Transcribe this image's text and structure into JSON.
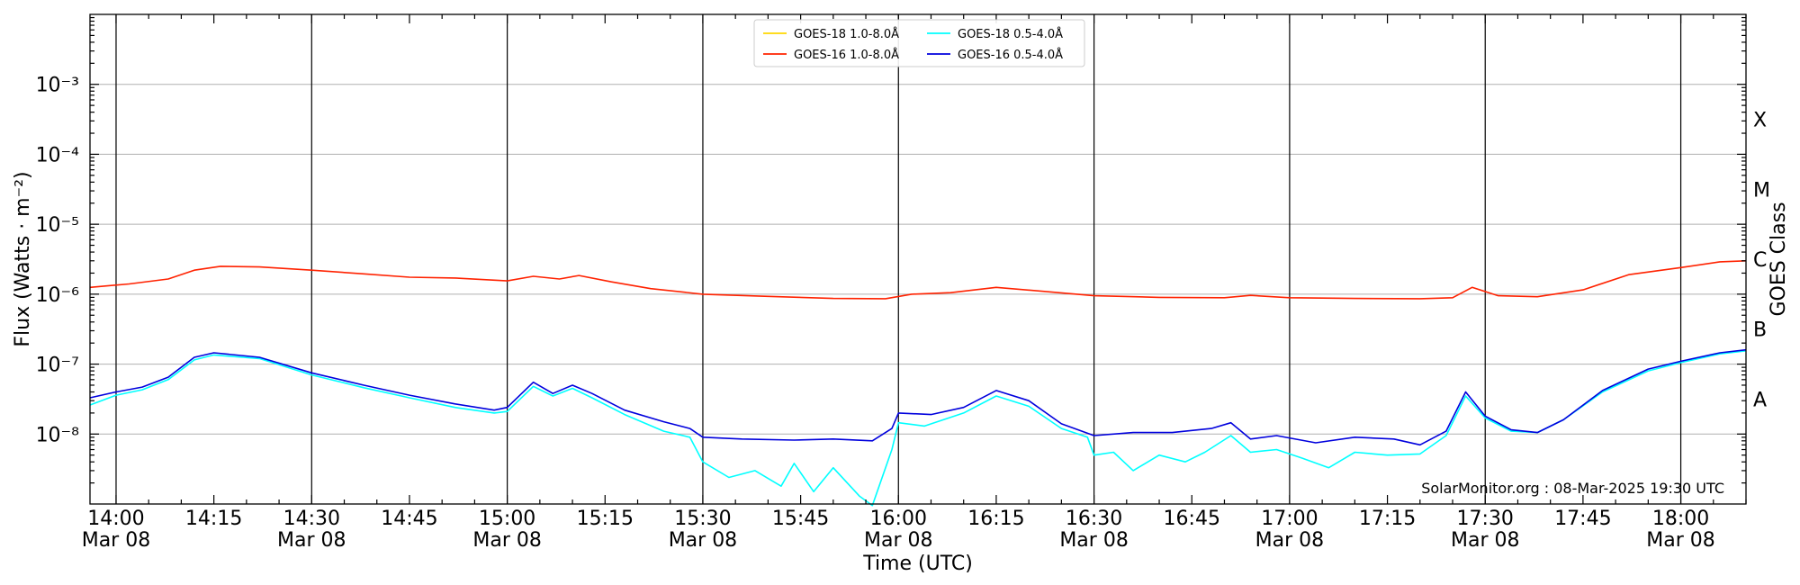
{
  "chart_data": {
    "type": "line",
    "title": "",
    "xlabel": "Time (UTC)",
    "ylabel": "Flux (Watts · m⁻²)",
    "y2label": "GOES Class",
    "yscale": "log",
    "xlim": [
      "13:56",
      "18:10"
    ],
    "ylim": [
      1e-09,
      0.01
    ],
    "grid": "horizontal",
    "legend": "top-center",
    "credit": "SolarMonitor.org : 08-Mar-2025 19:30 UTC",
    "x_ticks": [
      {
        "time": "14:00",
        "date": "Mar 08"
      },
      {
        "time": "14:15",
        "date": ""
      },
      {
        "time": "14:30",
        "date": "Mar 08"
      },
      {
        "time": "14:45",
        "date": ""
      },
      {
        "time": "15:00",
        "date": "Mar 08"
      },
      {
        "time": "15:15",
        "date": ""
      },
      {
        "time": "15:30",
        "date": "Mar 08"
      },
      {
        "time": "15:45",
        "date": ""
      },
      {
        "time": "16:00",
        "date": "Mar 08"
      },
      {
        "time": "16:15",
        "date": ""
      },
      {
        "time": "16:30",
        "date": "Mar 08"
      },
      {
        "time": "16:45",
        "date": ""
      },
      {
        "time": "17:00",
        "date": "Mar 08"
      },
      {
        "time": "17:15",
        "date": ""
      },
      {
        "time": "17:30",
        "date": "Mar 08"
      },
      {
        "time": "17:45",
        "date": ""
      },
      {
        "time": "18:00",
        "date": "Mar 08"
      }
    ],
    "y_ticks": [
      {
        "value": 1e-08,
        "label": "10⁻⁸"
      },
      {
        "value": 1e-07,
        "label": "10⁻⁷"
      },
      {
        "value": 1e-06,
        "label": "10⁻⁶"
      },
      {
        "value": 1e-05,
        "label": "10⁻⁵"
      },
      {
        "value": 0.0001,
        "label": "10⁻⁴"
      },
      {
        "value": 0.001,
        "label": "10⁻³"
      }
    ],
    "goes_classes": [
      {
        "label": "A",
        "value": 3.16e-08
      },
      {
        "label": "B",
        "value": 3.16e-07
      },
      {
        "label": "C",
        "value": 3.16e-06
      },
      {
        "label": "M",
        "value": 3.16e-05
      },
      {
        "label": "X",
        "value": 0.000316
      }
    ],
    "vertical_lines": [
      "14:00",
      "14:30",
      "15:00",
      "15:30",
      "16:00",
      "16:30",
      "17:00",
      "17:30",
      "18:00"
    ],
    "series": [
      {
        "name": "GOES-18 1.0-8.0Å",
        "color": "#ffd700",
        "points": []
      },
      {
        "name": "GOES-16 1.0-8.0Å",
        "color": "#ff2200",
        "points": [
          [
            "13:56",
            1.25e-06
          ],
          [
            "14:02",
            1.4e-06
          ],
          [
            "14:08",
            1.65e-06
          ],
          [
            "14:12",
            2.2e-06
          ],
          [
            "14:16",
            2.5e-06
          ],
          [
            "14:22",
            2.45e-06
          ],
          [
            "14:30",
            2.2e-06
          ],
          [
            "14:38",
            1.95e-06
          ],
          [
            "14:45",
            1.75e-06
          ],
          [
            "14:52",
            1.7e-06
          ],
          [
            "15:00",
            1.55e-06
          ],
          [
            "15:04",
            1.8e-06
          ],
          [
            "15:08",
            1.65e-06
          ],
          [
            "15:11",
            1.85e-06
          ],
          [
            "15:16",
            1.5e-06
          ],
          [
            "15:22",
            1.2e-06
          ],
          [
            "15:30",
            1e-06
          ],
          [
            "15:40",
            9.3e-07
          ],
          [
            "15:50",
            8.7e-07
          ],
          [
            "15:58",
            8.6e-07
          ],
          [
            "16:02",
            1e-06
          ],
          [
            "16:08",
            1.05e-06
          ],
          [
            "16:15",
            1.25e-06
          ],
          [
            "16:22",
            1.1e-06
          ],
          [
            "16:30",
            9.5e-07
          ],
          [
            "16:40",
            9e-07
          ],
          [
            "16:50",
            8.9e-07
          ],
          [
            "16:54",
            9.6e-07
          ],
          [
            "17:00",
            8.9e-07
          ],
          [
            "17:10",
            8.7e-07
          ],
          [
            "17:20",
            8.6e-07
          ],
          [
            "17:25",
            8.9e-07
          ],
          [
            "17:28",
            1.25e-06
          ],
          [
            "17:32",
            9.5e-07
          ],
          [
            "17:38",
            9.2e-07
          ],
          [
            "17:45",
            1.15e-06
          ],
          [
            "17:52",
            1.9e-06
          ],
          [
            "18:00",
            2.4e-06
          ],
          [
            "18:06",
            2.9e-06
          ],
          [
            "18:10",
            3e-06
          ]
        ]
      },
      {
        "name": "GOES-18 0.5-4.0Å",
        "color": "#00ffff",
        "points": [
          [
            "13:56",
            2.6e-08
          ],
          [
            "14:00",
            3.6e-08
          ],
          [
            "14:04",
            4.3e-08
          ],
          [
            "14:08",
            6e-08
          ],
          [
            "14:12",
            1.15e-07
          ],
          [
            "14:15",
            1.35e-07
          ],
          [
            "14:22",
            1.2e-07
          ],
          [
            "14:30",
            7e-08
          ],
          [
            "14:38",
            4.6e-08
          ],
          [
            "14:45",
            3.3e-08
          ],
          [
            "14:52",
            2.4e-08
          ],
          [
            "14:58",
            2e-08
          ],
          [
            "15:00",
            2.1e-08
          ],
          [
            "15:04",
            4.8e-08
          ],
          [
            "15:07",
            3.5e-08
          ],
          [
            "15:10",
            4.5e-08
          ],
          [
            "15:13",
            3.3e-08
          ],
          [
            "15:18",
            1.9e-08
          ],
          [
            "15:24",
            1.1e-08
          ],
          [
            "15:28",
            9e-09
          ],
          [
            "15:30",
            4e-09
          ],
          [
            "15:34",
            2.4e-09
          ],
          [
            "15:38",
            3e-09
          ],
          [
            "15:42",
            1.8e-09
          ],
          [
            "15:44",
            3.8e-09
          ],
          [
            "15:47",
            1.5e-09
          ],
          [
            "15:50",
            3.3e-09
          ],
          [
            "15:54",
            1.3e-09
          ],
          [
            "15:56",
            9.5e-10
          ],
          [
            "15:59",
            6e-09
          ],
          [
            "16:00",
            1.45e-08
          ],
          [
            "16:04",
            1.3e-08
          ],
          [
            "16:10",
            2e-08
          ],
          [
            "16:15",
            3.5e-08
          ],
          [
            "16:20",
            2.5e-08
          ],
          [
            "16:25",
            1.2e-08
          ],
          [
            "16:29",
            9e-09
          ],
          [
            "16:30",
            5e-09
          ],
          [
            "16:33",
            5.5e-09
          ],
          [
            "16:36",
            3e-09
          ],
          [
            "16:40",
            5e-09
          ],
          [
            "16:44",
            4e-09
          ],
          [
            "16:47",
            5.5e-09
          ],
          [
            "16:51",
            9.5e-09
          ],
          [
            "16:54",
            5.5e-09
          ],
          [
            "16:58",
            6e-09
          ],
          [
            "17:02",
            4.5e-09
          ],
          [
            "17:06",
            3.3e-09
          ],
          [
            "17:10",
            5.5e-09
          ],
          [
            "17:15",
            5e-09
          ],
          [
            "17:20",
            5.2e-09
          ],
          [
            "17:24",
            9.5e-09
          ],
          [
            "17:27",
            3.5e-08
          ],
          [
            "17:30",
            1.7e-08
          ],
          [
            "17:34",
            1.1e-08
          ],
          [
            "17:38",
            1.05e-08
          ],
          [
            "17:42",
            1.6e-08
          ],
          [
            "17:48",
            4e-08
          ],
          [
            "17:55",
            8e-08
          ],
          [
            "18:00",
            1.05e-07
          ],
          [
            "18:06",
            1.4e-07
          ],
          [
            "18:10",
            1.55e-07
          ]
        ]
      },
      {
        "name": "GOES-16 0.5-4.0Å",
        "color": "#0000dd",
        "points": [
          [
            "13:56",
            3.3e-08
          ],
          [
            "14:00",
            4e-08
          ],
          [
            "14:04",
            4.7e-08
          ],
          [
            "14:08",
            6.5e-08
          ],
          [
            "14:12",
            1.25e-07
          ],
          [
            "14:15",
            1.45e-07
          ],
          [
            "14:22",
            1.25e-07
          ],
          [
            "14:30",
            7.5e-08
          ],
          [
            "14:38",
            5e-08
          ],
          [
            "14:45",
            3.6e-08
          ],
          [
            "14:52",
            2.7e-08
          ],
          [
            "14:58",
            2.2e-08
          ],
          [
            "15:00",
            2.4e-08
          ],
          [
            "15:04",
            5.5e-08
          ],
          [
            "15:07",
            3.8e-08
          ],
          [
            "15:10",
            5e-08
          ],
          [
            "15:13",
            3.8e-08
          ],
          [
            "15:18",
            2.2e-08
          ],
          [
            "15:24",
            1.5e-08
          ],
          [
            "15:28",
            1.2e-08
          ],
          [
            "15:30",
            9e-09
          ],
          [
            "15:36",
            8.5e-09
          ],
          [
            "15:44",
            8.2e-09
          ],
          [
            "15:50",
            8.5e-09
          ],
          [
            "15:56",
            8e-09
          ],
          [
            "15:59",
            1.2e-08
          ],
          [
            "16:00",
            2e-08
          ],
          [
            "16:05",
            1.9e-08
          ],
          [
            "16:10",
            2.4e-08
          ],
          [
            "16:15",
            4.2e-08
          ],
          [
            "16:20",
            3e-08
          ],
          [
            "16:25",
            1.4e-08
          ],
          [
            "16:30",
            9.5e-09
          ],
          [
            "16:36",
            1.05e-08
          ],
          [
            "16:42",
            1.05e-08
          ],
          [
            "16:48",
            1.2e-08
          ],
          [
            "16:51",
            1.45e-08
          ],
          [
            "16:54",
            8.5e-09
          ],
          [
            "16:58",
            9.5e-09
          ],
          [
            "17:04",
            7.5e-09
          ],
          [
            "17:10",
            9e-09
          ],
          [
            "17:16",
            8.5e-09
          ],
          [
            "17:20",
            7e-09
          ],
          [
            "17:24",
            1.1e-08
          ],
          [
            "17:27",
            4e-08
          ],
          [
            "17:30",
            1.8e-08
          ],
          [
            "17:34",
            1.15e-08
          ],
          [
            "17:38",
            1.05e-08
          ],
          [
            "17:42",
            1.6e-08
          ],
          [
            "17:48",
            4.2e-08
          ],
          [
            "17:55",
            8.5e-08
          ],
          [
            "18:00",
            1.1e-07
          ],
          [
            "18:06",
            1.45e-07
          ],
          [
            "18:10",
            1.6e-07
          ]
        ]
      }
    ]
  }
}
